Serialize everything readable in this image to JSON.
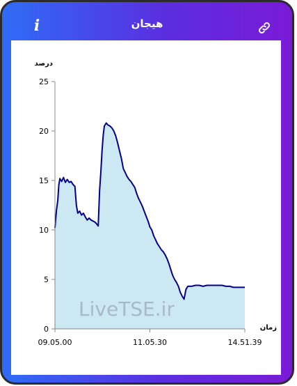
{
  "header": {
    "title": "هیجان",
    "info_label": "i",
    "info_icon": "info-icon",
    "link_icon": "link-icon"
  },
  "colors": {
    "gradient_start": "#2f6cf6",
    "gradient_end": "#7a1ad6",
    "line": "#00008b",
    "fill": "#cce8f2"
  },
  "watermark": "LiveTSE.ir",
  "chart_data": {
    "type": "area",
    "ylabel": "درصد",
    "xlabel": "زمان",
    "ylim": [
      0,
      25
    ],
    "yticks": [
      0,
      5,
      10,
      15,
      20,
      25
    ],
    "xtick_labels": [
      "09.05.00",
      "11.05.30",
      "14.51.39"
    ],
    "x_range": [
      0,
      100
    ],
    "series": [
      {
        "values": [
          [
            0,
            10.2
          ],
          [
            0.8,
            12
          ],
          [
            1.5,
            13
          ],
          [
            2,
            14.5
          ],
          [
            2.6,
            15.2
          ],
          [
            3.5,
            14.9
          ],
          [
            4.5,
            15.3
          ],
          [
            5.5,
            14.8
          ],
          [
            6.5,
            15.1
          ],
          [
            7.5,
            14.8
          ],
          [
            8.5,
            14.9
          ],
          [
            9.5,
            14.6
          ],
          [
            10.5,
            14.4
          ],
          [
            11.3,
            12.5
          ],
          [
            12,
            11.7
          ],
          [
            13,
            11.9
          ],
          [
            14,
            11.5
          ],
          [
            15,
            11.7
          ],
          [
            16,
            11.3
          ],
          [
            17,
            11.0
          ],
          [
            18,
            11.2
          ],
          [
            19,
            11.0
          ],
          [
            20,
            10.9
          ],
          [
            21,
            10.8
          ],
          [
            22,
            10.6
          ],
          [
            22.8,
            10.4
          ],
          [
            23.5,
            14
          ],
          [
            24.2,
            16
          ],
          [
            24.8,
            18
          ],
          [
            25.4,
            19.5
          ],
          [
            26,
            20.5
          ],
          [
            27,
            20.8
          ],
          [
            28,
            20.6
          ],
          [
            29,
            20.5
          ],
          [
            30,
            20.3
          ],
          [
            31,
            20.0
          ],
          [
            32,
            19.5
          ],
          [
            33,
            18.8
          ],
          [
            34,
            18.0
          ],
          [
            35,
            17.2
          ],
          [
            36,
            16.2
          ],
          [
            37,
            15.8
          ],
          [
            38,
            15.4
          ],
          [
            39,
            15.1
          ],
          [
            40,
            14.9
          ],
          [
            41,
            14.6
          ],
          [
            42,
            14.3
          ],
          [
            43,
            13.7
          ],
          [
            44,
            13.2
          ],
          [
            45,
            12.8
          ],
          [
            46,
            12.4
          ],
          [
            47,
            11.9
          ],
          [
            48,
            11.4
          ],
          [
            49,
            10.9
          ],
          [
            50,
            10.3
          ],
          [
            51,
            10.0
          ],
          [
            52,
            9.4
          ],
          [
            53,
            9.0
          ],
          [
            54,
            8.6
          ],
          [
            55,
            8.3
          ],
          [
            56,
            8.0
          ],
          [
            57,
            7.8
          ],
          [
            58,
            7.5
          ],
          [
            59,
            7.1
          ],
          [
            60,
            6.6
          ],
          [
            61,
            6.0
          ],
          [
            62,
            5.4
          ],
          [
            63,
            5.0
          ],
          [
            64,
            4.7
          ],
          [
            65,
            4.3
          ],
          [
            66,
            3.7
          ],
          [
            67,
            3.3
          ],
          [
            68,
            3.0
          ],
          [
            68.5,
            3.5
          ],
          [
            69,
            4.0
          ],
          [
            70,
            4.3
          ],
          [
            72,
            4.3
          ],
          [
            74,
            4.4
          ],
          [
            76,
            4.4
          ],
          [
            78,
            4.3
          ],
          [
            80,
            4.4
          ],
          [
            82,
            4.4
          ],
          [
            84,
            4.4
          ],
          [
            86,
            4.4
          ],
          [
            88,
            4.4
          ],
          [
            90,
            4.3
          ],
          [
            92,
            4.3
          ],
          [
            94,
            4.2
          ],
          [
            96,
            4.2
          ],
          [
            98,
            4.2
          ],
          [
            100,
            4.2
          ]
        ]
      }
    ]
  }
}
